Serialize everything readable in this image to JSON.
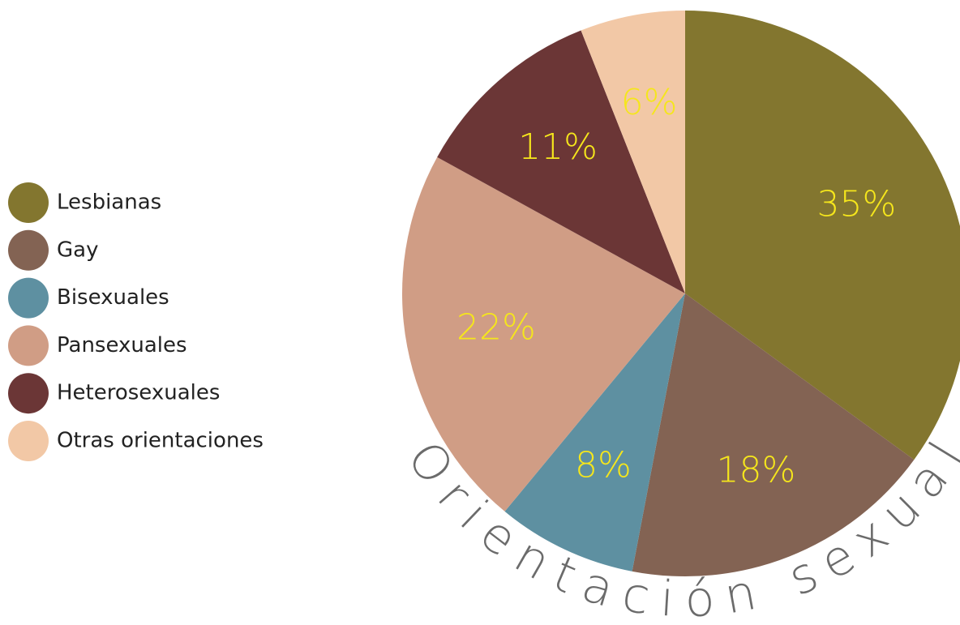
{
  "chart_data": {
    "type": "pie",
    "title": "Orientación sexual",
    "categories": [
      "Lesbianas",
      "Gay",
      "Bisexuales",
      "Pansexuales",
      "Heterosexuales",
      "Otras orientaciones"
    ],
    "values": [
      35,
      18,
      8,
      22,
      11,
      6
    ],
    "value_labels": [
      "35%",
      "18%",
      "8%",
      "22%",
      "11%",
      "6%"
    ],
    "colors": [
      "#83762f",
      "#836353",
      "#5e90a1",
      "#d09d85",
      "#6b3636",
      "#f2c8a6"
    ],
    "label_color": "#f5e61c",
    "legend": "left"
  }
}
